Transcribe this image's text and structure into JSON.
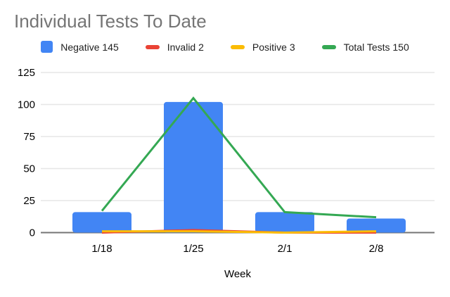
{
  "title": "Individual Tests To Date",
  "colors": {
    "background": "#FFFFFF",
    "title_text": "#757575",
    "axis_text": "#000000",
    "legend_text": "#212121",
    "gridline": "#E6E6E6",
    "zero_line": "#757575",
    "negative_blue": "#4285F4",
    "invalid_red": "#EA4335",
    "positive_yellow": "#FBBC04",
    "total_green": "#34A853"
  },
  "legend": [
    {
      "label": "Negative 145",
      "swatch": "square",
      "color": "#4285F4"
    },
    {
      "label": "Invalid 2",
      "swatch": "dash",
      "color": "#EA4335"
    },
    {
      "label": "Positive 3",
      "swatch": "dash",
      "color": "#FBBC04"
    },
    {
      "label": "Total Tests 150",
      "swatch": "dash",
      "color": "#34A853"
    }
  ],
  "chart_data": {
    "type": "combo-bar-line",
    "title": "Individual Tests To Date",
    "categories": [
      "1/18",
      "1/25",
      "2/1",
      "2/8"
    ],
    "series": [
      {
        "name": "Negative 145",
        "type": "bar",
        "color": "#4285F4",
        "values": [
          16,
          102,
          16,
          11
        ],
        "total": 145
      },
      {
        "name": "Invalid 2",
        "type": "line",
        "color": "#EA4335",
        "values": [
          0,
          2,
          0,
          0
        ],
        "total": 2
      },
      {
        "name": "Positive 3",
        "type": "line",
        "color": "#FBBC04",
        "values": [
          1,
          1,
          0,
          1
        ],
        "total": 3
      },
      {
        "name": "Total Tests 150",
        "type": "line",
        "color": "#34A853",
        "values": [
          17,
          105,
          16,
          12
        ],
        "total": 150
      }
    ],
    "xlabel": "Week",
    "ylabel": "",
    "ylim": [
      0,
      125
    ],
    "yticks": [
      0,
      25,
      50,
      75,
      100,
      125
    ],
    "grid": true,
    "legend_position": "top"
  }
}
